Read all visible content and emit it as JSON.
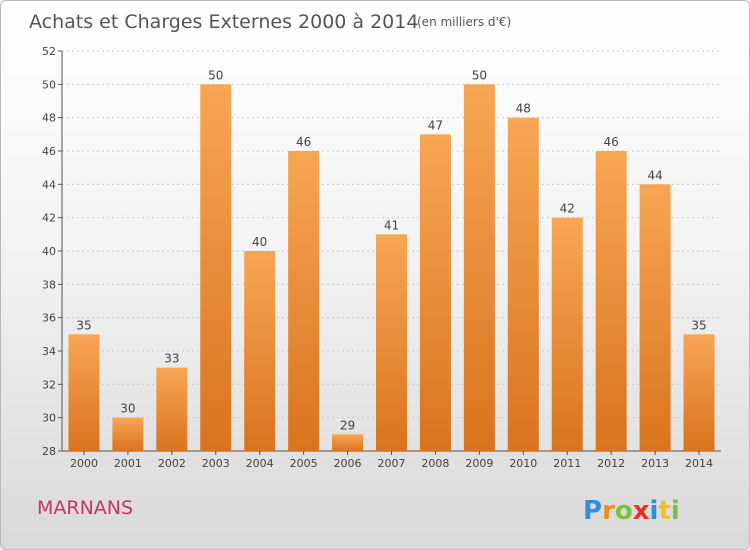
{
  "header": {
    "title": "Achats et Charges Externes 2000 à 2014",
    "unit": "(en milliers d'€)"
  },
  "footer": {
    "city": "MARNANS",
    "logo_letters": [
      {
        "char": "P",
        "color": "#2f8fd8"
      },
      {
        "char": "r",
        "color": "#f28c1c"
      },
      {
        "char": "o",
        "color": "#7cc242"
      },
      {
        "char": "x",
        "color": "#e8302c"
      },
      {
        "char": "i",
        "color": "#2f8fd8"
      },
      {
        "char": "t",
        "color": "#f2c21c"
      },
      {
        "char": "i",
        "color": "#7cc242"
      }
    ]
  },
  "colors": {
    "bar_light": "#f7a654",
    "bar_dark": "#d9741e",
    "axis": "#555555",
    "grid": "#cccccc"
  },
  "chart_data": {
    "type": "bar",
    "title": "Achats et Charges Externes 2000 à 2014",
    "subtitle": "(en milliers d'€)",
    "categories": [
      "2000",
      "2001",
      "2002",
      "2003",
      "2004",
      "2005",
      "2006",
      "2007",
      "2008",
      "2009",
      "2010",
      "2011",
      "2012",
      "2013",
      "2014"
    ],
    "values": [
      35,
      30,
      33,
      50,
      40,
      46,
      29,
      41,
      47,
      50,
      48,
      42,
      46,
      44,
      35
    ],
    "ylim": [
      28,
      52
    ],
    "yticks": [
      28,
      30,
      32,
      34,
      36,
      38,
      40,
      42,
      44,
      46,
      48,
      50,
      52
    ],
    "grid": true,
    "xlabel": "",
    "ylabel": ""
  }
}
